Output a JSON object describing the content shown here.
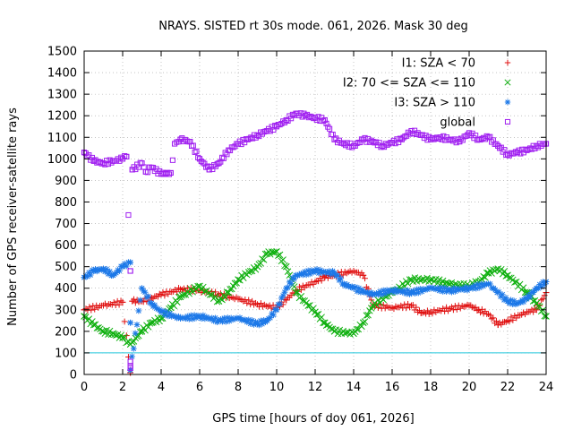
{
  "chart_data": {
    "type": "scatter",
    "title": "NRAYS. SISTED rt 30s mode. 061, 2026. Mask 30 deg",
    "xlabel": "GPS time [hours of doy 061, 2026]",
    "ylabel": "Number of GPS receiver-satellite rays",
    "xlim": [
      0,
      24
    ],
    "ylim": [
      0,
      1500
    ],
    "xticks": [
      0,
      2,
      4,
      6,
      8,
      10,
      12,
      14,
      16,
      18,
      20,
      22,
      24
    ],
    "yticks": [
      0,
      100,
      200,
      300,
      400,
      500,
      600,
      700,
      800,
      900,
      1000,
      1100,
      1200,
      1300,
      1400,
      1500
    ],
    "grid": true,
    "legend_position": "top-right",
    "reference_line": {
      "y": 100,
      "color": "#22c8dc"
    },
    "series": [
      {
        "name": "I1: SZA < 70",
        "marker": "plus",
        "color": "#e01010",
        "points": [
          [
            0,
            300
          ],
          [
            1,
            320
          ],
          [
            2,
            335
          ],
          [
            2.4,
            8
          ],
          [
            2.5,
            340
          ],
          [
            3,
            340
          ],
          [
            3.5,
            355
          ],
          [
            4,
            370
          ],
          [
            5,
            395
          ],
          [
            6,
            390
          ],
          [
            7,
            370
          ],
          [
            8,
            350
          ],
          [
            9,
            325
          ],
          [
            10,
            310
          ],
          [
            10.5,
            345
          ],
          [
            11,
            390
          ],
          [
            12,
            430
          ],
          [
            12.5,
            450
          ],
          [
            13,
            460
          ],
          [
            14,
            480
          ],
          [
            14.5,
            460
          ],
          [
            15,
            320
          ],
          [
            16,
            310
          ],
          [
            17,
            320
          ],
          [
            17.5,
            285
          ],
          [
            18,
            290
          ],
          [
            19,
            305
          ],
          [
            20,
            320
          ],
          [
            20.5,
            300
          ],
          [
            21,
            280
          ],
          [
            21.5,
            230
          ],
          [
            22,
            250
          ],
          [
            23,
            290
          ],
          [
            23.5,
            300
          ],
          [
            24,
            380
          ]
        ]
      },
      {
        "name": "I2: 70 <= SZA <= 110",
        "marker": "x",
        "color": "#10b010",
        "points": [
          [
            0,
            270
          ],
          [
            0.5,
            230
          ],
          [
            1,
            200
          ],
          [
            1.5,
            190
          ],
          [
            2,
            170
          ],
          [
            2.4,
            140
          ],
          [
            2.5,
            150
          ],
          [
            3,
            200
          ],
          [
            3.5,
            240
          ],
          [
            4,
            260
          ],
          [
            4.5,
            310
          ],
          [
            5,
            360
          ],
          [
            6,
            410
          ],
          [
            7,
            340
          ],
          [
            7.5,
            380
          ],
          [
            8,
            440
          ],
          [
            9,
            500
          ],
          [
            9.5,
            560
          ],
          [
            10,
            570
          ],
          [
            10.5,
            500
          ],
          [
            11,
            380
          ],
          [
            12,
            290
          ],
          [
            12.5,
            240
          ],
          [
            13,
            200
          ],
          [
            14,
            190
          ],
          [
            14.5,
            240
          ],
          [
            15,
            320
          ],
          [
            16,
            380
          ],
          [
            17,
            440
          ],
          [
            18,
            440
          ],
          [
            19,
            420
          ],
          [
            20,
            410
          ],
          [
            20.5,
            430
          ],
          [
            21,
            470
          ],
          [
            21.5,
            490
          ],
          [
            22,
            460
          ],
          [
            23,
            380
          ],
          [
            23.5,
            330
          ],
          [
            24,
            270
          ]
        ]
      },
      {
        "name": "I3: SZA > 110",
        "marker": "star",
        "color": "#1c78e8",
        "points": [
          [
            0,
            450
          ],
          [
            0.5,
            480
          ],
          [
            1,
            490
          ],
          [
            1.5,
            460
          ],
          [
            2,
            500
          ],
          [
            2.4,
            520
          ],
          [
            2.4,
            240
          ],
          [
            2.4,
            20
          ],
          [
            3,
            400
          ],
          [
            3.5,
            330
          ],
          [
            4,
            290
          ],
          [
            5,
            260
          ],
          [
            6,
            270
          ],
          [
            7,
            250
          ],
          [
            8,
            260
          ],
          [
            9,
            235
          ],
          [
            9.5,
            250
          ],
          [
            10,
            300
          ],
          [
            10.5,
            400
          ],
          [
            11,
            460
          ],
          [
            12,
            480
          ],
          [
            13,
            470
          ],
          [
            13.5,
            420
          ],
          [
            14,
            400
          ],
          [
            15,
            370
          ],
          [
            16,
            390
          ],
          [
            17,
            380
          ],
          [
            18,
            400
          ],
          [
            19,
            390
          ],
          [
            20,
            400
          ],
          [
            21,
            420
          ],
          [
            22,
            340
          ],
          [
            22.5,
            330
          ],
          [
            23,
            350
          ],
          [
            23.5,
            400
          ],
          [
            24,
            430
          ]
        ]
      },
      {
        "name": "global",
        "marker": "square",
        "color": "#a020f0",
        "points": [
          [
            0,
            1030
          ],
          [
            0.5,
            990
          ],
          [
            1,
            980
          ],
          [
            1.5,
            990
          ],
          [
            2,
            1000
          ],
          [
            2.2,
            1010
          ],
          [
            2.4,
            480
          ],
          [
            2.4,
            60
          ],
          [
            2.4,
            40
          ],
          [
            2.4,
            30
          ],
          [
            2.5,
            950
          ],
          [
            3,
            980
          ],
          [
            3.2,
            940
          ],
          [
            3.5,
            960
          ],
          [
            4,
            930
          ],
          [
            4.5,
            935
          ],
          [
            4.7,
            1070
          ],
          [
            5,
            1090
          ],
          [
            5.5,
            1080
          ],
          [
            6,
            1000
          ],
          [
            6.5,
            950
          ],
          [
            7,
            980
          ],
          [
            7.5,
            1040
          ],
          [
            8,
            1070
          ],
          [
            8.5,
            1090
          ],
          [
            9,
            1110
          ],
          [
            9.5,
            1130
          ],
          [
            10,
            1150
          ],
          [
            10.5,
            1180
          ],
          [
            11,
            1210
          ],
          [
            11.5,
            1200
          ],
          [
            12,
            1190
          ],
          [
            12.5,
            1180
          ],
          [
            13,
            1090
          ],
          [
            13.5,
            1070
          ],
          [
            14,
            1060
          ],
          [
            14.5,
            1090
          ],
          [
            15,
            1080
          ],
          [
            15.5,
            1060
          ],
          [
            16,
            1075
          ],
          [
            16.5,
            1090
          ],
          [
            17,
            1130
          ],
          [
            17.5,
            1110
          ],
          [
            18,
            1090
          ],
          [
            18.5,
            1100
          ],
          [
            19,
            1090
          ],
          [
            19.5,
            1080
          ],
          [
            20,
            1120
          ],
          [
            20.5,
            1090
          ],
          [
            21,
            1100
          ],
          [
            21.5,
            1060
          ],
          [
            22,
            1020
          ],
          [
            22.5,
            1030
          ],
          [
            23,
            1040
          ],
          [
            23.5,
            1060
          ],
          [
            24,
            1070
          ]
        ]
      }
    ]
  }
}
